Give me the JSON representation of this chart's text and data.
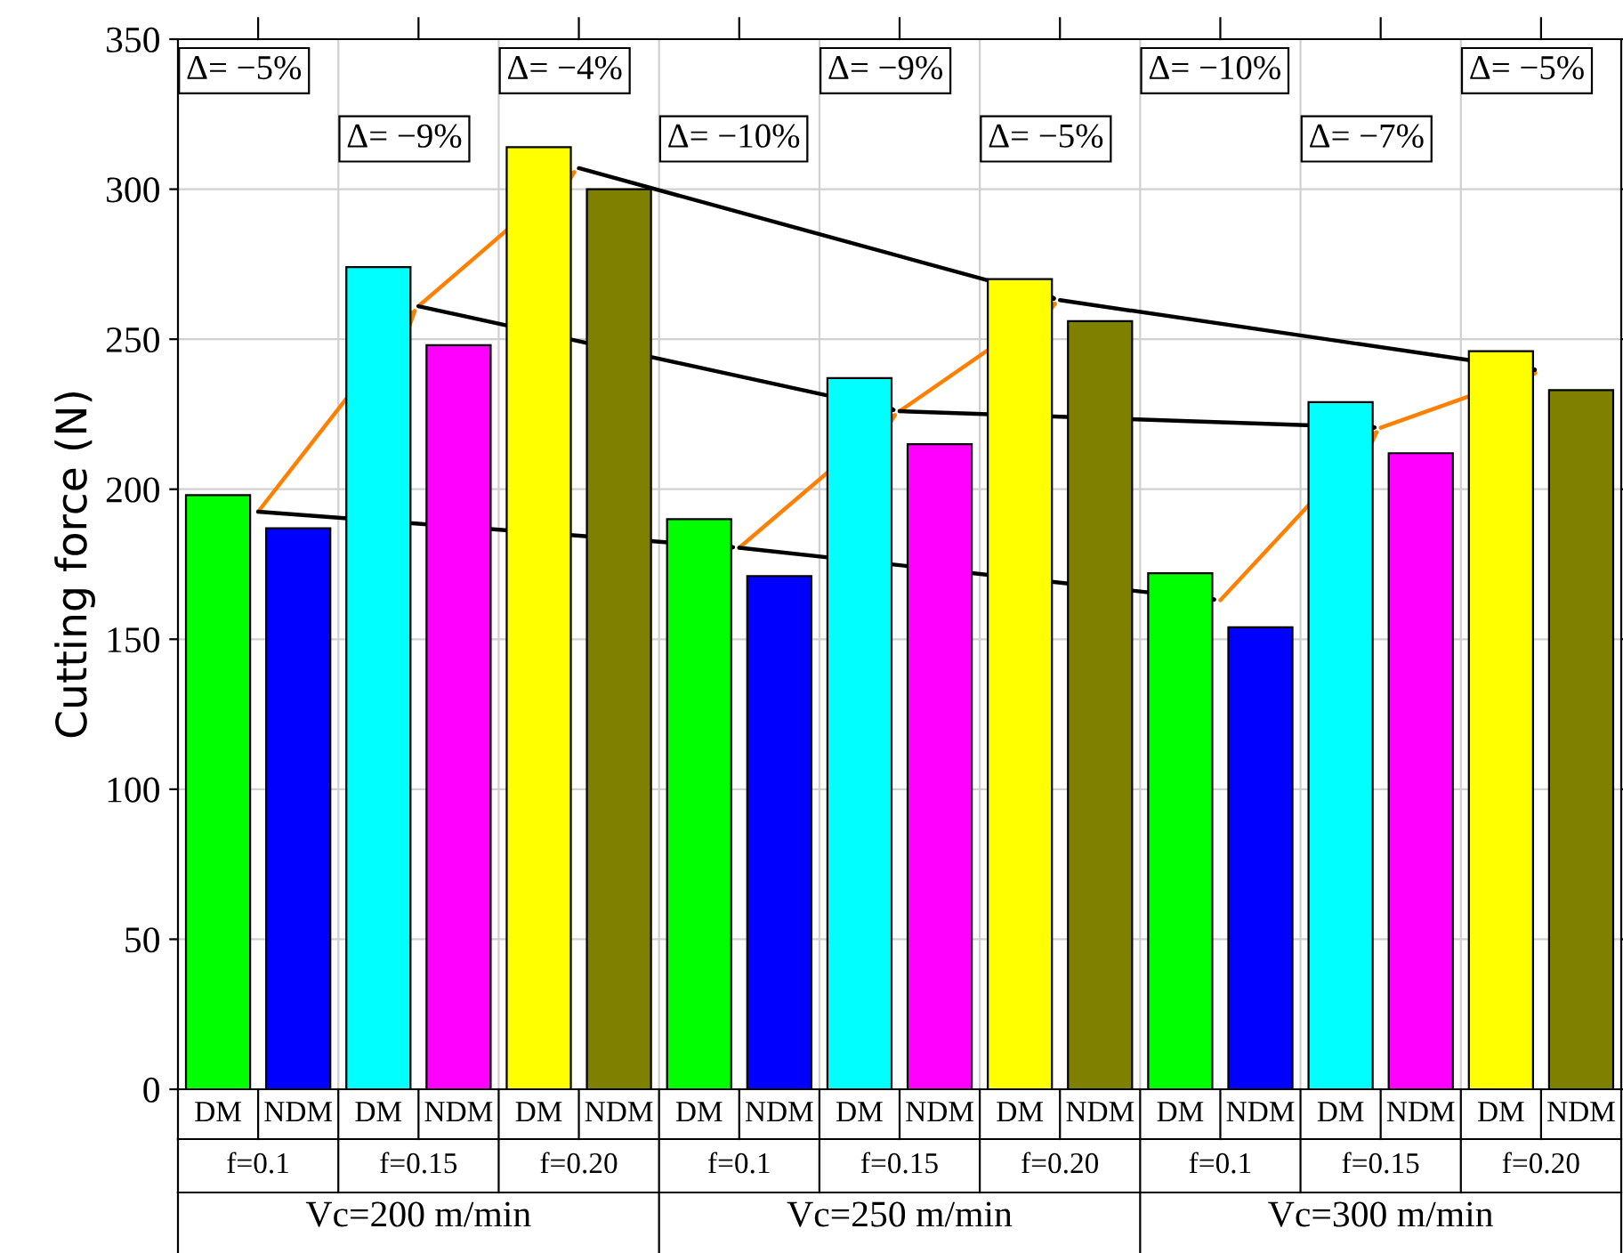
{
  "chart_data": {
    "type": "bar",
    "ylabel": "Cutting force (N)",
    "categories": [
      "DM",
      "NDM",
      "DM",
      "NDM",
      "DM",
      "NDM",
      "DM",
      "NDM",
      "DM",
      "NDM",
      "DM",
      "NDM",
      "DM",
      "NDM",
      "DM",
      "NDM",
      "DM",
      "NDM"
    ],
    "values": [
      198,
      187,
      274,
      248,
      314,
      300,
      190,
      171,
      237,
      215,
      270,
      256,
      172,
      154,
      229,
      212,
      246,
      233
    ],
    "colors": [
      "#00ff00",
      "#0000ff",
      "#00ffff",
      "#ff00ff",
      "#ffff00",
      "#808000",
      "#00ff00",
      "#0000ff",
      "#00ffff",
      "#ff00ff",
      "#ffff00",
      "#808000",
      "#00ff00",
      "#0000ff",
      "#00ffff",
      "#ff00ff",
      "#ffff00",
      "#808000"
    ],
    "ylim": [
      0,
      350
    ],
    "yticks": [
      0,
      50,
      100,
      150,
      200,
      250,
      300,
      350
    ],
    "grid": true,
    "annotations": [
      "Δ= −5%",
      "Δ= −9%",
      "Δ= −4%",
      "Δ= −10%",
      "Δ= −9%",
      "Δ= −5%",
      "Δ= −10%",
      "Δ= −7%",
      "Δ= −5%",
      "f=0.1",
      "f=0.15",
      "f=0.20",
      "f=0.1",
      "f=0.15",
      "f=0.20",
      "f=0.1",
      "f=0.15",
      "f=0.20",
      "Vc=200 m/min",
      "Vc=250 m/min",
      "Vc=300 m/min"
    ]
  }
}
